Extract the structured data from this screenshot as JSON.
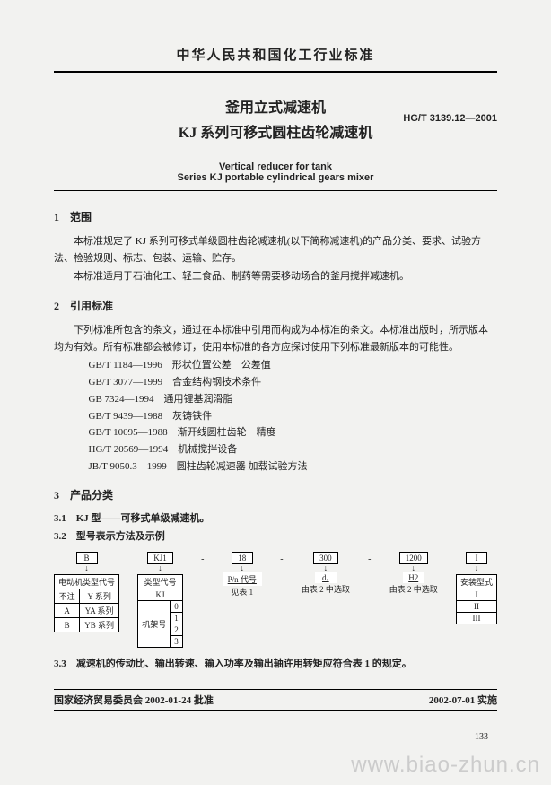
{
  "header": {
    "org": "中华人民共和国化工行业标准",
    "title1": "釜用立式减速机",
    "title2": "KJ 系列可移式圆柱齿轮减速机",
    "stdCode": "HG/T 3139.12—2001",
    "titleEn1": "Vertical reducer for tank",
    "titleEn2": "Series KJ portable cylindrical gears mixer"
  },
  "sec1": {
    "title": "1　范围",
    "p1": "本标准规定了 KJ 系列可移式单级圆柱齿轮减速机(以下简称减速机)的产品分类、要求、试验方法、检验规则、标志、包装、运输、贮存。",
    "p2": "本标准适用于石油化工、轻工食品、制药等需要移动场合的釜用搅拌减速机。"
  },
  "sec2": {
    "title": "2　引用标准",
    "p1": "下列标准所包含的条文，通过在本标准中引用而构成为本标准的条文。本标准出版时，所示版本均为有效。所有标准都会被修订，使用本标准的各方应探讨使用下列标准最新版本的可能性。",
    "refs": [
      "GB/T 1184—1996　形状位置公差　公差值",
      "GB/T 3077—1999　合金结构钢技术条件",
      "GB 7324—1994　通用锂基润滑脂",
      "GB/T 9439—1988　灰铸铁件",
      "GB/T 10095—1988　渐开线圆柱齿轮　精度",
      "HG/T 20569—1994　机械搅拌设备",
      "JB/T 9050.3—1999　圆柱齿轮减速器 加载试验方法"
    ]
  },
  "sec3": {
    "title": "3　产品分类",
    "s31": "3.1　KJ 型——可移式单级减速机。",
    "s32": "3.2　型号表示方法及示例",
    "s33": "3.3　减速机的传动比、输出转速、输入功率及输出轴许用转矩应符合表 1 的规定。"
  },
  "diagram": {
    "boxes": [
      "B",
      "KJ1",
      "18",
      "300",
      "1200",
      "I"
    ],
    "col1": {
      "header": "电动机类型代号",
      "rows": [
        [
          "不注",
          "Y 系列"
        ],
        [
          "A",
          "YA 系列"
        ],
        [
          "B",
          "YB 系列"
        ]
      ]
    },
    "col2": {
      "header": "类型代号",
      "kj": "KJ",
      "label": "机架号",
      "nums": [
        "0",
        "1",
        "2",
        "3"
      ]
    },
    "col3": {
      "line1": "P/n 代号",
      "line2": "见表 1"
    },
    "col4": {
      "line1": "d₁",
      "line2": "由表 2 中选取"
    },
    "col5": {
      "line1": "H2",
      "line2": "由表 2 中选取"
    },
    "col6": {
      "header": "安装型式",
      "rows": [
        "I",
        "II",
        "III"
      ]
    }
  },
  "footer": {
    "left": "国家经济贸易委员会 2002-01-24 批准",
    "right": "2002-07-01 实施",
    "page": "133",
    "watermark": "www.biao-zhun.cn"
  }
}
